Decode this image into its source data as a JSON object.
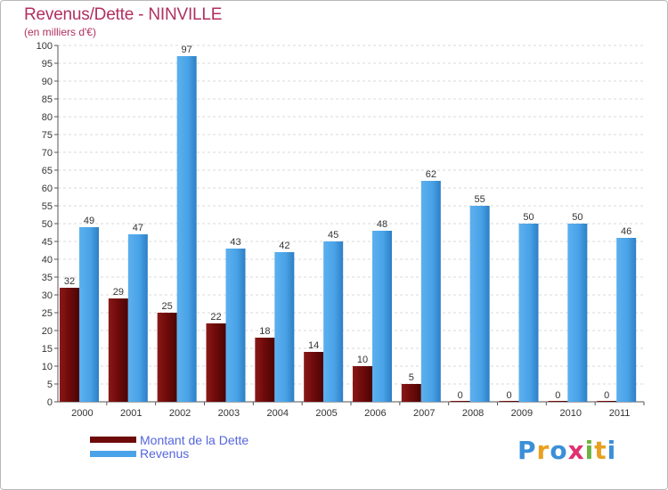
{
  "chart_data": {
    "type": "bar",
    "title": "Revenus/Dette - NINVILLE",
    "subtitle": "(en milliers d'€)",
    "xlabel": "",
    "ylabel": "",
    "ylim": [
      0,
      100
    ],
    "yticks": [
      0,
      5,
      10,
      15,
      20,
      25,
      30,
      35,
      40,
      45,
      50,
      55,
      60,
      65,
      70,
      75,
      80,
      85,
      90,
      95,
      100
    ],
    "grid": true,
    "legend_position": "bottom-left",
    "categories": [
      "2000",
      "2001",
      "2002",
      "2003",
      "2004",
      "2005",
      "2006",
      "2007",
      "2008",
      "2009",
      "2010",
      "2011"
    ],
    "series": [
      {
        "name": "Montant de la Dette",
        "color": "#6e0a0a",
        "values": [
          32,
          29,
          25,
          22,
          18,
          14,
          10,
          5,
          0,
          0,
          0,
          0
        ]
      },
      {
        "name": "Revenus",
        "color": "#4aa3e8",
        "values": [
          49,
          47,
          97,
          43,
          42,
          45,
          48,
          62,
          55,
          50,
          50,
          46
        ]
      }
    ]
  },
  "logo": {
    "text": "Proxiti",
    "colors": [
      "#3b8fd9",
      "#e8a020",
      "#3b8fd9",
      "#e03070",
      "#6db33f",
      "#e8a020",
      "#3b8fd9"
    ]
  }
}
